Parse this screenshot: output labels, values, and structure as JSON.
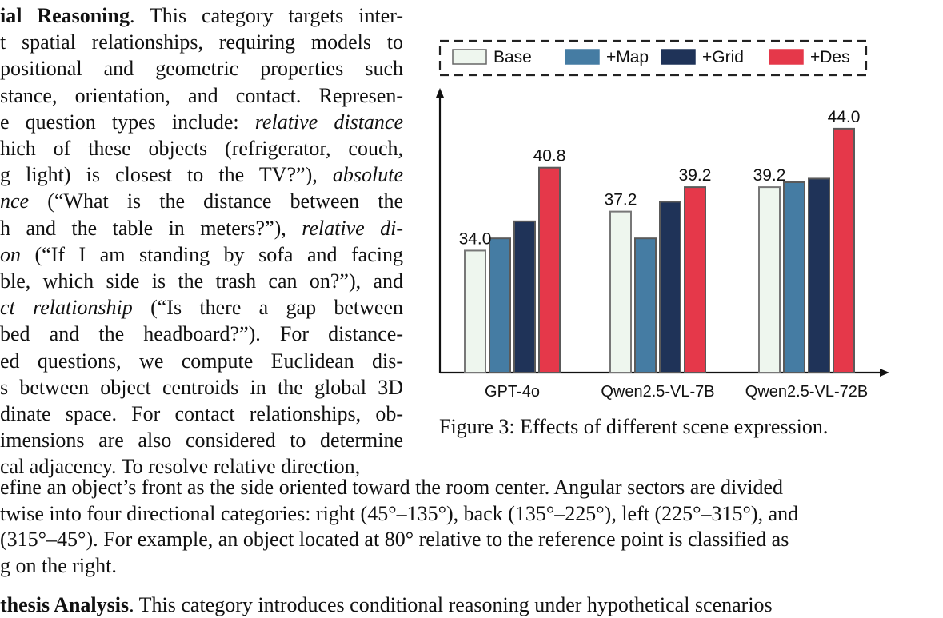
{
  "left_column": {
    "lines": [
      {
        "segments": [
          {
            "text": "ial Reasoning",
            "style": "bold"
          },
          {
            "text": ". This category targets inter-"
          }
        ]
      },
      {
        "segments": [
          {
            "text": "t spatial relationships, requiring models to"
          }
        ]
      },
      {
        "segments": [
          {
            "text": " positional and geometric properties such"
          }
        ]
      },
      {
        "segments": [
          {
            "text": "stance, orientation, and contact. Represen-"
          }
        ]
      },
      {
        "segments": [
          {
            "text": "e question types include: "
          },
          {
            "text": "relative distance",
            "style": "italic"
          }
        ]
      },
      {
        "segments": [
          {
            "text": "hich of these objects (refrigerator, couch,"
          }
        ]
      },
      {
        "segments": [
          {
            "text": "g light) is closest to the TV?”), "
          },
          {
            "text": "absolute",
            "style": "italic"
          }
        ]
      },
      {
        "segments": [
          {
            "text": "nce",
            "style": "italic"
          },
          {
            "text": " (“What is the distance between the"
          }
        ]
      },
      {
        "segments": [
          {
            "text": "h and the table in meters?”), "
          },
          {
            "text": "relative di-",
            "style": "italic"
          }
        ]
      },
      {
        "segments": [
          {
            "text": "on",
            "style": "italic"
          },
          {
            "text": " (“If I am standing by sofa and facing"
          }
        ]
      },
      {
        "segments": [
          {
            "text": "ble, which side is the trash can on?”), and"
          }
        ]
      },
      {
        "segments": [
          {
            "text": "ct relationship",
            "style": "italic"
          },
          {
            "text": " (“Is there a gap between"
          }
        ]
      },
      {
        "segments": [
          {
            "text": "bed and the headboard?”).  For distance-"
          }
        ]
      },
      {
        "segments": [
          {
            "text": "ed questions, we compute Euclidean dis-"
          }
        ]
      },
      {
        "segments": [
          {
            "text": "s between object centroids in the global 3D"
          }
        ]
      },
      {
        "segments": [
          {
            "text": "dinate space. For contact relationships, ob-"
          }
        ]
      },
      {
        "segments": [
          {
            "text": "imensions are also considered to determine"
          }
        ]
      },
      {
        "segments": [
          {
            "text": "cal adjacency. To resolve relative direction,"
          }
        ]
      }
    ]
  },
  "full_width": {
    "lines": [
      "efine an object’s front as the side oriented toward the room center. Angular sectors are divided",
      "twise into four directional categories: right (45°–135°), back (135°–225°), left (225°–315°), and",
      " (315°–45°). For example, an object located at 80° relative to the reference point is classified as",
      "g on the right."
    ],
    "next_heading": "thesis Analysis",
    "next_text": ". This category introduces conditional reasoning under hypothetical scenarios"
  },
  "figure": {
    "caption": "Figure 3: Effects of different scene expression."
  },
  "colors": {
    "base": "#eef6ee",
    "map": "#457ca3",
    "grid": "#1f3358",
    "des": "#e5384a",
    "bar_stroke": "#777777"
  },
  "chart_data": {
    "type": "bar",
    "categories": [
      "GPT-4o",
      "Qwen2.5-VL-7B",
      "Qwen2.5-VL-72B"
    ],
    "series": [
      {
        "name": "Base",
        "values": [
          34.0,
          37.2,
          39.2
        ]
      },
      {
        "name": "+Map",
        "values": [
          35.0,
          35.0,
          39.6
        ]
      },
      {
        "name": "+Grid",
        "values": [
          36.4,
          38.0,
          39.9
        ]
      },
      {
        "name": "+Des",
        "values": [
          40.8,
          39.2,
          44.0
        ]
      }
    ],
    "value_labels": [
      {
        "category": "GPT-4o",
        "series": "Base",
        "text": "34.0"
      },
      {
        "category": "GPT-4o",
        "series": "+Des",
        "text": "40.8"
      },
      {
        "category": "Qwen2.5-VL-7B",
        "series": "Base",
        "text": "37.2"
      },
      {
        "category": "Qwen2.5-VL-7B",
        "series": "+Des",
        "text": "39.2"
      },
      {
        "category": "Qwen2.5-VL-72B",
        "series": "Base",
        "text": "39.2"
      },
      {
        "category": "Qwen2.5-VL-72B",
        "series": "+Des",
        "text": "44.0"
      }
    ],
    "ylim": [
      24.0,
      45.5
    ],
    "grid": false,
    "legend_position": "top",
    "legend_border": "dashed"
  }
}
